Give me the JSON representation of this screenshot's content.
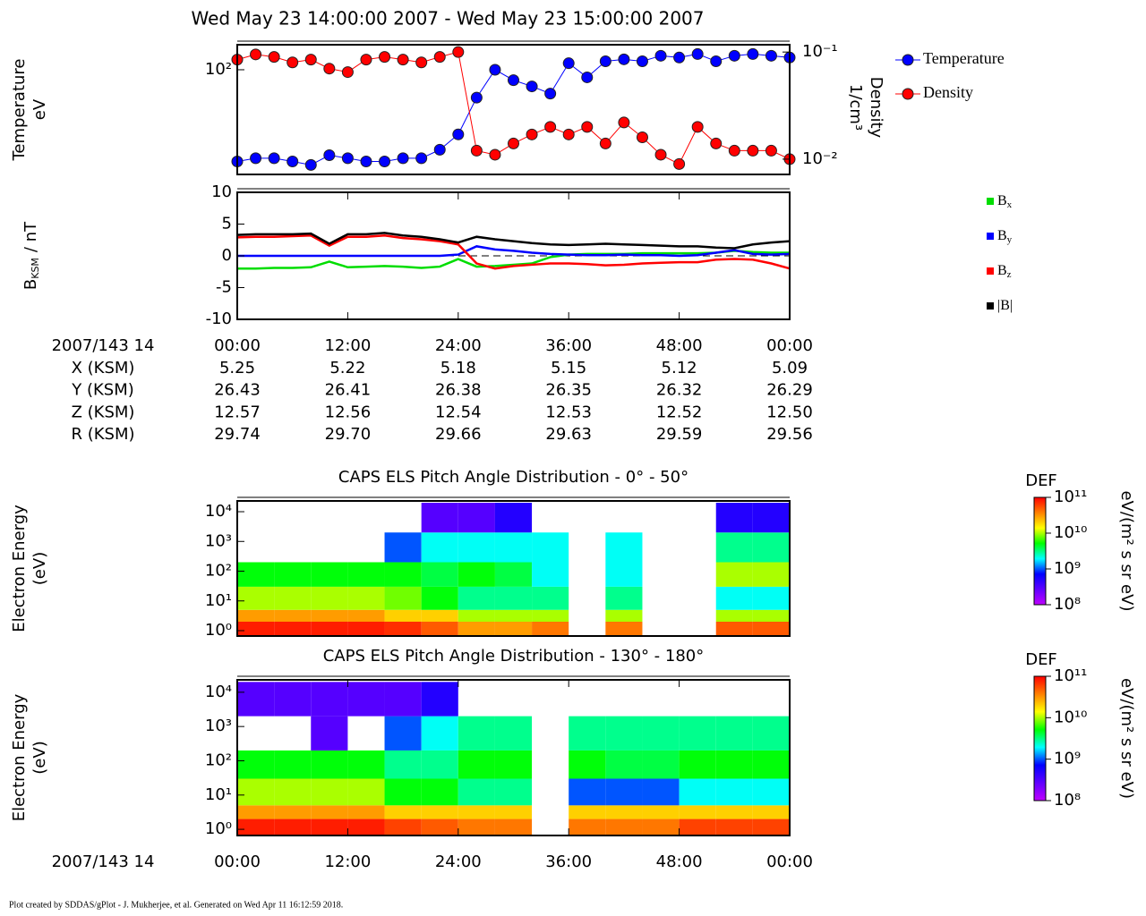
{
  "title": "Wed May 23 14:00:00 2007 - Wed May 23 15:00:00 2007",
  "footer": "Plot created by SDDAS/gPlot - J. Mukherjee, et al.  Generated on Wed Apr 11 16:12:59 2018.",
  "ephemeris": {
    "label": "2007/143 14",
    "rows": [
      {
        "name": "X (KSM)",
        "values": [
          "5.25",
          "5.22",
          "5.18",
          "5.15",
          "5.12",
          "5.09"
        ]
      },
      {
        "name": "Y (KSM)",
        "values": [
          "26.43",
          "26.41",
          "26.38",
          "26.35",
          "26.32",
          "26.29"
        ]
      },
      {
        "name": "Z (KSM)",
        "values": [
          "12.57",
          "12.56",
          "12.54",
          "12.53",
          "12.52",
          "12.50"
        ]
      },
      {
        "name": "R (KSM)",
        "values": [
          "29.74",
          "29.70",
          "29.66",
          "29.63",
          "29.59",
          "29.56"
        ]
      }
    ]
  },
  "chart_data": [
    {
      "type": "line",
      "markers": true,
      "legend": "right",
      "ylabel": [
        "Temperature",
        "eV"
      ],
      "y2label": [
        "Density",
        "1/cm³"
      ],
      "xlim": [
        0,
        60
      ],
      "ylog": true,
      "ylim": [
        10.6,
        171
      ],
      "yticks": [
        {
          "value": 100,
          "label": "10²"
        }
      ],
      "y2log": true,
      "y2lim": [
        0.0072,
        0.117
      ],
      "y2ticks": [
        {
          "value": 0.1,
          "label": "10⁻¹"
        },
        {
          "value": 0.01,
          "label": "10⁻²"
        }
      ],
      "x": [
        0,
        2,
        4,
        6,
        8,
        10,
        12,
        14,
        16,
        18,
        20,
        22,
        24,
        26,
        28,
        30,
        32,
        34,
        36,
        38,
        40,
        42,
        44,
        46,
        48,
        50,
        52,
        54,
        56,
        58,
        60
      ],
      "series": [
        {
          "name": "Temperature",
          "color": "#0000ff",
          "values": [
            14,
            15,
            15,
            14,
            13,
            16,
            15,
            14,
            14,
            15,
            15,
            18,
            25,
            55,
            100,
            80,
            70,
            60,
            115,
            85,
            120,
            125,
            120,
            135,
            130,
            140,
            120,
            135,
            140,
            135,
            130
          ]
        },
        {
          "name": "Density",
          "color": "#ff0000",
          "axis": "y2",
          "values": [
            0.085,
            0.095,
            0.09,
            0.08,
            0.085,
            0.07,
            0.065,
            0.085,
            0.09,
            0.085,
            0.08,
            0.09,
            0.1,
            0.012,
            0.011,
            0.014,
            0.017,
            0.02,
            0.017,
            0.02,
            0.014,
            0.022,
            0.016,
            0.011,
            0.009,
            0.02,
            0.014,
            0.012,
            0.012,
            0.012,
            0.01
          ]
        }
      ]
    },
    {
      "type": "line",
      "markers": false,
      "legend": "right",
      "zero_line": true,
      "ylabel": {
        "text": "B",
        "sub": "KSM",
        "unit": "/ nT"
      },
      "xlim": [
        0,
        60
      ],
      "ylim": [
        -10,
        10
      ],
      "yticks": [
        -10,
        -5,
        0,
        5,
        10
      ],
      "xticks": [
        {
          "value": 0,
          "label": "00:00"
        },
        {
          "value": 12,
          "label": "12:00"
        },
        {
          "value": 24,
          "label": "24:00"
        },
        {
          "value": 36,
          "label": "36:00"
        },
        {
          "value": 48,
          "label": "48:00"
        },
        {
          "value": 60,
          "label": "00:00"
        }
      ],
      "x": [
        0,
        2,
        4,
        6,
        8,
        10,
        12,
        14,
        16,
        18,
        20,
        22,
        24,
        26,
        28,
        30,
        32,
        34,
        36,
        38,
        40,
        42,
        44,
        46,
        48,
        50,
        52,
        54,
        56,
        58,
        60
      ],
      "series": [
        {
          "name": "B",
          "sub": "x",
          "color": "#00dd00",
          "values": [
            -2,
            -2,
            -1.9,
            -1.9,
            -1.8,
            -0.9,
            -1.8,
            -1.7,
            -1.6,
            -1.7,
            -1.9,
            -1.7,
            -0.5,
            -1.7,
            -1.6,
            -1.4,
            -1.2,
            -0.2,
            0.2,
            0.3,
            0.3,
            0.3,
            0.4,
            0.4,
            0.4,
            0.4,
            0.5,
            0.8,
            0.6,
            0.5,
            0.5
          ]
        },
        {
          "name": "B",
          "sub": "y",
          "color": "#0000ff",
          "values": [
            0,
            0,
            0,
            0,
            0,
            0,
            0,
            0,
            0,
            0,
            0,
            0,
            0.2,
            1.5,
            1,
            0.8,
            0.5,
            0.3,
            0.2,
            0.1,
            0.1,
            0.2,
            0.1,
            0.1,
            0,
            0.1,
            0.5,
            0.9,
            0.3,
            0.2,
            0.3
          ]
        },
        {
          "name": "B",
          "sub": "z",
          "color": "#ff0000",
          "values": [
            2.9,
            3,
            3,
            3.1,
            3.2,
            1.6,
            3,
            3,
            3.2,
            2.8,
            2.6,
            2.3,
            1.8,
            -1.2,
            -2,
            -1.6,
            -1.4,
            -1.2,
            -1.2,
            -1.3,
            -1.5,
            -1.4,
            -1.2,
            -1.1,
            -1,
            -1,
            -0.6,
            -0.5,
            -0.6,
            -1.2,
            -2
          ]
        },
        {
          "name": "|B|",
          "color": "#000000",
          "values": [
            3.3,
            3.4,
            3.4,
            3.4,
            3.5,
            1.9,
            3.4,
            3.4,
            3.6,
            3.2,
            3,
            2.6,
            2.1,
            3,
            2.6,
            2.3,
            2,
            1.8,
            1.7,
            1.8,
            1.9,
            1.8,
            1.7,
            1.6,
            1.5,
            1.5,
            1.3,
            1.2,
            1.8,
            2.1,
            2.3
          ]
        }
      ]
    },
    {
      "type": "heatmap",
      "title": "CAPS ELS Pitch Angle Distribution - 0° - 50°",
      "ylabel": [
        "Electron Energy",
        "(eV)"
      ],
      "xlim": [
        0,
        60
      ],
      "ylog": true,
      "ylim": [
        0.66,
        23000
      ],
      "yticks": [
        {
          "value": 1,
          "label": "10⁰"
        },
        {
          "value": 10,
          "label": "10¹"
        },
        {
          "value": 100,
          "label": "10²"
        },
        {
          "value": 1000,
          "label": "10³"
        },
        {
          "value": 10000,
          "label": "10⁴"
        }
      ],
      "colorbar_title": "DEF",
      "colorbar_label": "eV/(m² s sr eV)",
      "clim": [
        100000000.0,
        100000000000.0
      ],
      "cticks": [
        {
          "value": 100000000000.0,
          "label": "10¹¹"
        },
        {
          "value": 10000000000.0,
          "label": "10¹⁰"
        },
        {
          "value": 1000000000.0,
          "label": "10⁹"
        },
        {
          "value": 100000000.0,
          "label": "10⁸"
        }
      ],
      "colormap": [
        "#c000ff",
        "#6000ff",
        "#0000ff",
        "#00ffff",
        "#00ff00",
        "#ffff00",
        "#ff8000",
        "#ff0000"
      ],
      "xbins": [
        0,
        4,
        8,
        12,
        16,
        20,
        24,
        28,
        32,
        36,
        40,
        44,
        48,
        52,
        56,
        60
      ],
      "ybins": [
        0.7,
        2,
        5,
        30,
        200,
        2000,
        20000
      ],
      "values": [
        [
          80000000000.0,
          30000000000.0,
          10000000000.0,
          5000000000.0,
          null,
          null
        ],
        [
          80000000000.0,
          30000000000.0,
          10000000000.0,
          5000000000.0,
          null,
          null
        ],
        [
          80000000000.0,
          30000000000.0,
          10000000000.0,
          5000000000.0,
          null,
          null
        ],
        [
          80000000000.0,
          30000000000.0,
          10000000000.0,
          5000000000.0,
          null,
          null
        ],
        [
          70000000000.0,
          20000000000.0,
          8000000000.0,
          5000000000.0,
          1000000000.0,
          null
        ],
        [
          50000000000.0,
          20000000000.0,
          5000000000.0,
          4000000000.0,
          2000000000.0,
          300000000.0
        ],
        [
          30000000000.0,
          10000000000.0,
          3000000000.0,
          5000000000.0,
          2000000000.0,
          300000000.0
        ],
        [
          30000000000.0,
          10000000000.0,
          3000000000.0,
          4000000000.0,
          2000000000.0,
          500000000.0
        ],
        [
          40000000000.0,
          10000000000.0,
          3000000000.0,
          2000000000.0,
          2000000000.0,
          null
        ],
        [
          null,
          null,
          null,
          null,
          null,
          null
        ],
        [
          40000000000.0,
          10000000000.0,
          3000000000.0,
          2000000000.0,
          2000000000.0,
          null
        ],
        [
          null,
          null,
          null,
          null,
          null,
          null
        ],
        [
          null,
          null,
          null,
          null,
          null,
          null
        ],
        [
          50000000000.0,
          10000000000.0,
          2000000000.0,
          10000000000.0,
          3000000000.0,
          500000000.0
        ],
        [
          50000000000.0,
          10000000000.0,
          2000000000.0,
          10000000000.0,
          3000000000.0,
          500000000.0
        ]
      ]
    },
    {
      "type": "heatmap",
      "title": "CAPS ELS Pitch Angle Distribution - 130° - 180°",
      "ylabel": [
        "Electron Energy",
        "(eV)"
      ],
      "xlim": [
        0,
        60
      ],
      "ylog": true,
      "ylim": [
        0.66,
        23000
      ],
      "yticks": [
        {
          "value": 1,
          "label": "10⁰"
        },
        {
          "value": 10,
          "label": "10¹"
        },
        {
          "value": 100,
          "label": "10²"
        },
        {
          "value": 1000,
          "label": "10³"
        },
        {
          "value": 10000,
          "label": "10⁴"
        }
      ],
      "xlabel": "2007/143 14",
      "xticks": [
        {
          "value": 0,
          "label": "00:00"
        },
        {
          "value": 12,
          "label": "12:00"
        },
        {
          "value": 24,
          "label": "24:00"
        },
        {
          "value": 36,
          "label": "36:00"
        },
        {
          "value": 48,
          "label": "48:00"
        },
        {
          "value": 60,
          "label": "00:00"
        }
      ],
      "colorbar_title": "DEF",
      "colorbar_label": "eV/(m² s sr eV)",
      "clim": [
        100000000.0,
        100000000000.0
      ],
      "cticks": [
        {
          "value": 100000000000.0,
          "label": "10¹¹"
        },
        {
          "value": 10000000000.0,
          "label": "10¹⁰"
        },
        {
          "value": 1000000000.0,
          "label": "10⁹"
        },
        {
          "value": 100000000.0,
          "label": "10⁸"
        }
      ],
      "colormap": [
        "#c000ff",
        "#6000ff",
        "#0000ff",
        "#00ffff",
        "#00ff00",
        "#ffff00",
        "#ff8000",
        "#ff0000"
      ],
      "xbins": [
        0,
        4,
        8,
        12,
        16,
        20,
        24,
        28,
        32,
        36,
        40,
        44,
        48,
        52,
        56,
        60
      ],
      "ybins": [
        0.7,
        2,
        5,
        30,
        200,
        2000,
        20000
      ],
      "values": [
        [
          80000000000.0,
          30000000000.0,
          10000000000.0,
          5000000000.0,
          null,
          300000000.0
        ],
        [
          80000000000.0,
          30000000000.0,
          10000000000.0,
          5000000000.0,
          null,
          300000000.0
        ],
        [
          80000000000.0,
          30000000000.0,
          10000000000.0,
          5000000000.0,
          300000000.0,
          300000000.0
        ],
        [
          80000000000.0,
          30000000000.0,
          10000000000.0,
          5000000000.0,
          null,
          300000000.0
        ],
        [
          60000000000.0,
          20000000000.0,
          5000000000.0,
          3000000000.0,
          1000000000.0,
          300000000.0
        ],
        [
          50000000000.0,
          20000000000.0,
          5000000000.0,
          3000000000.0,
          2000000000.0,
          500000000.0
        ],
        [
          40000000000.0,
          20000000000.0,
          3000000000.0,
          5000000000.0,
          3000000000.0,
          null
        ],
        [
          40000000000.0,
          20000000000.0,
          3000000000.0,
          5000000000.0,
          3000000000.0,
          null
        ],
        [
          null,
          null,
          null,
          null,
          null,
          null
        ],
        [
          40000000000.0,
          20000000000.0,
          1000000000.0,
          5000000000.0,
          3000000000.0,
          null
        ],
        [
          40000000000.0,
          20000000000.0,
          1000000000.0,
          4000000000.0,
          3000000000.0,
          null
        ],
        [
          40000000000.0,
          20000000000.0,
          1000000000.0,
          4000000000.0,
          3000000000.0,
          null
        ],
        [
          60000000000.0,
          20000000000.0,
          2000000000.0,
          5000000000.0,
          3000000000.0,
          null
        ],
        [
          60000000000.0,
          20000000000.0,
          2000000000.0,
          5000000000.0,
          3000000000.0,
          null
        ],
        [
          60000000000.0,
          20000000000.0,
          2000000000.0,
          5000000000.0,
          3000000000.0,
          null
        ]
      ]
    }
  ]
}
